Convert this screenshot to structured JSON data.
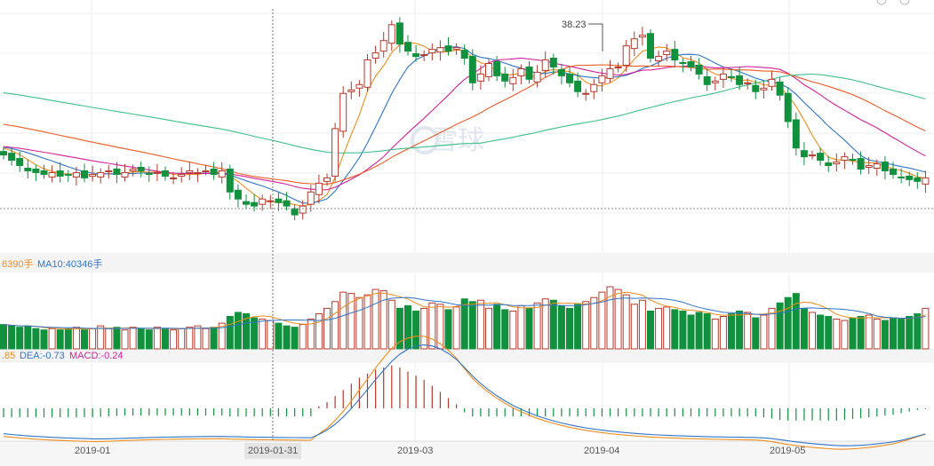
{
  "watermark": "雪球",
  "colors": {
    "up": "#b8382c",
    "down": "#11913d",
    "ma5": "#f08c1c",
    "ma10": "#2f74c8",
    "ma20": "#d6209c",
    "ma30": "#f05a23",
    "ma60": "#3fbf8a",
    "dif": "#f08c1c",
    "dea": "#2f74c8",
    "grid": "#e8e8e8"
  },
  "volume_label": {
    "ma5": "6390手",
    "ma10": "MA10:40346手"
  },
  "macd_label": {
    "dif": ".85",
    "dea": "DEA:-0.73",
    "macd": "MACD:-0.24"
  },
  "price_annotation": "38.23",
  "dates": [
    "2019-01",
    "2019-01-31",
    "2019-03",
    "2019-04",
    "2019-05"
  ],
  "chart_data": [
    {
      "type": "candlestick",
      "title": "",
      "x_ticks": [
        "2019-01",
        "2019-01-31",
        "2019-03",
        "2019-04",
        "2019-05"
      ],
      "marked_high": 38.23,
      "closes": [
        30.5,
        30.2,
        29.9,
        29.6,
        29.5,
        29.4,
        29.5,
        29.3,
        29.4,
        29.5,
        29.2,
        29.4,
        29.5,
        29.6,
        29.4,
        29.5,
        29.7,
        29.6,
        29.4,
        29.5,
        29.3,
        29.2,
        29.4,
        29.6,
        29.5,
        29.6,
        29.4,
        29.6,
        28.4,
        28.0,
        27.7,
        27.6,
        28.0,
        27.9,
        27.8,
        27.6,
        27.1,
        27.6,
        28.4,
        28.9,
        29.2,
        32.0,
        34.0,
        34.2,
        34.5,
        35.9,
        36.3,
        37.0,
        37.9,
        36.8,
        36.4,
        36.1,
        36.2,
        36.5,
        36.6,
        36.4,
        36.6,
        36.0,
        34.6,
        35.1,
        35.7,
        35.0,
        34.7,
        34.9,
        35.4,
        34.8,
        35.2,
        35.9,
        35.5,
        35.0,
        34.6,
        34.1,
        34.0,
        34.5,
        35.0,
        35.4,
        35.5,
        36.7,
        37.1,
        37.3,
        36.0,
        36.1,
        36.4,
        35.9,
        35.7,
        35.5,
        35.1,
        34.5,
        34.7,
        35.1,
        34.9,
        34.5,
        34.6,
        34.1,
        34.3,
        34.8,
        33.9,
        32.4,
        30.9,
        30.4,
        30.5,
        30.2,
        29.9,
        30.1,
        30.4,
        30.2,
        29.7,
        29.9,
        30.0,
        29.6,
        29.4,
        29.2,
        29.1,
        29.0,
        29.2
      ],
      "volumes": [
        18,
        17,
        16,
        17,
        15,
        14,
        15,
        14,
        15,
        16,
        14,
        15,
        17,
        15,
        16,
        14,
        16,
        15,
        14,
        16,
        15,
        14,
        15,
        16,
        17,
        15,
        16,
        19,
        24,
        27,
        26,
        23,
        22,
        21,
        19,
        17,
        16,
        18,
        22,
        26,
        30,
        35,
        42,
        41,
        38,
        40,
        44,
        43,
        36,
        30,
        32,
        28,
        30,
        34,
        33,
        29,
        31,
        37,
        35,
        36,
        30,
        33,
        29,
        28,
        32,
        30,
        34,
        37,
        36,
        32,
        30,
        33,
        35,
        38,
        42,
        46,
        44,
        40,
        33,
        36,
        28,
        30,
        31,
        29,
        28,
        25,
        27,
        26,
        22,
        24,
        26,
        28,
        27,
        23,
        25,
        30,
        34,
        38,
        41,
        30,
        27,
        25,
        24,
        22,
        21,
        23,
        24,
        25,
        22,
        21,
        23,
        22,
        24,
        26,
        30
      ],
      "macd_bars": [
        -0.22,
        -0.22,
        -0.22,
        -0.22,
        -0.22,
        -0.22,
        -0.22,
        -0.22,
        -0.22,
        -0.22,
        -0.22,
        -0.22,
        -0.21,
        -0.2,
        -0.19,
        -0.18,
        -0.18,
        -0.18,
        -0.18,
        -0.18,
        -0.18,
        -0.18,
        -0.18,
        -0.18,
        -0.18,
        -0.18,
        -0.18,
        -0.18,
        -0.2,
        -0.2,
        -0.2,
        -0.2,
        -0.2,
        -0.2,
        -0.2,
        -0.2,
        -0.2,
        -0.2,
        -0.2,
        0.05,
        0.15,
        0.3,
        0.45,
        0.6,
        0.75,
        0.85,
        0.95,
        1.0,
        1.05,
        1.0,
        0.9,
        0.8,
        0.7,
        0.55,
        0.4,
        0.25,
        0.1,
        -0.1,
        -0.2,
        -0.2,
        -0.2,
        -0.2,
        -0.2,
        -0.2,
        -0.2,
        -0.2,
        -0.2,
        -0.2,
        -0.2,
        -0.2,
        -0.2,
        -0.2,
        -0.2,
        -0.2,
        -0.2,
        -0.2,
        -0.2,
        -0.2,
        -0.2,
        -0.2,
        -0.2,
        -0.2,
        -0.2,
        -0.2,
        -0.2,
        -0.2,
        -0.2,
        -0.2,
        -0.2,
        -0.2,
        -0.2,
        -0.2,
        -0.2,
        -0.2,
        -0.22,
        -0.25,
        -0.28,
        -0.3,
        -0.3,
        -0.3,
        -0.3,
        -0.3,
        -0.3,
        -0.3,
        -0.28,
        -0.26,
        -0.24,
        -0.22,
        -0.2,
        -0.18,
        -0.16,
        -0.12,
        -0.08,
        -0.04,
        -0.02
      ]
    }
  ]
}
